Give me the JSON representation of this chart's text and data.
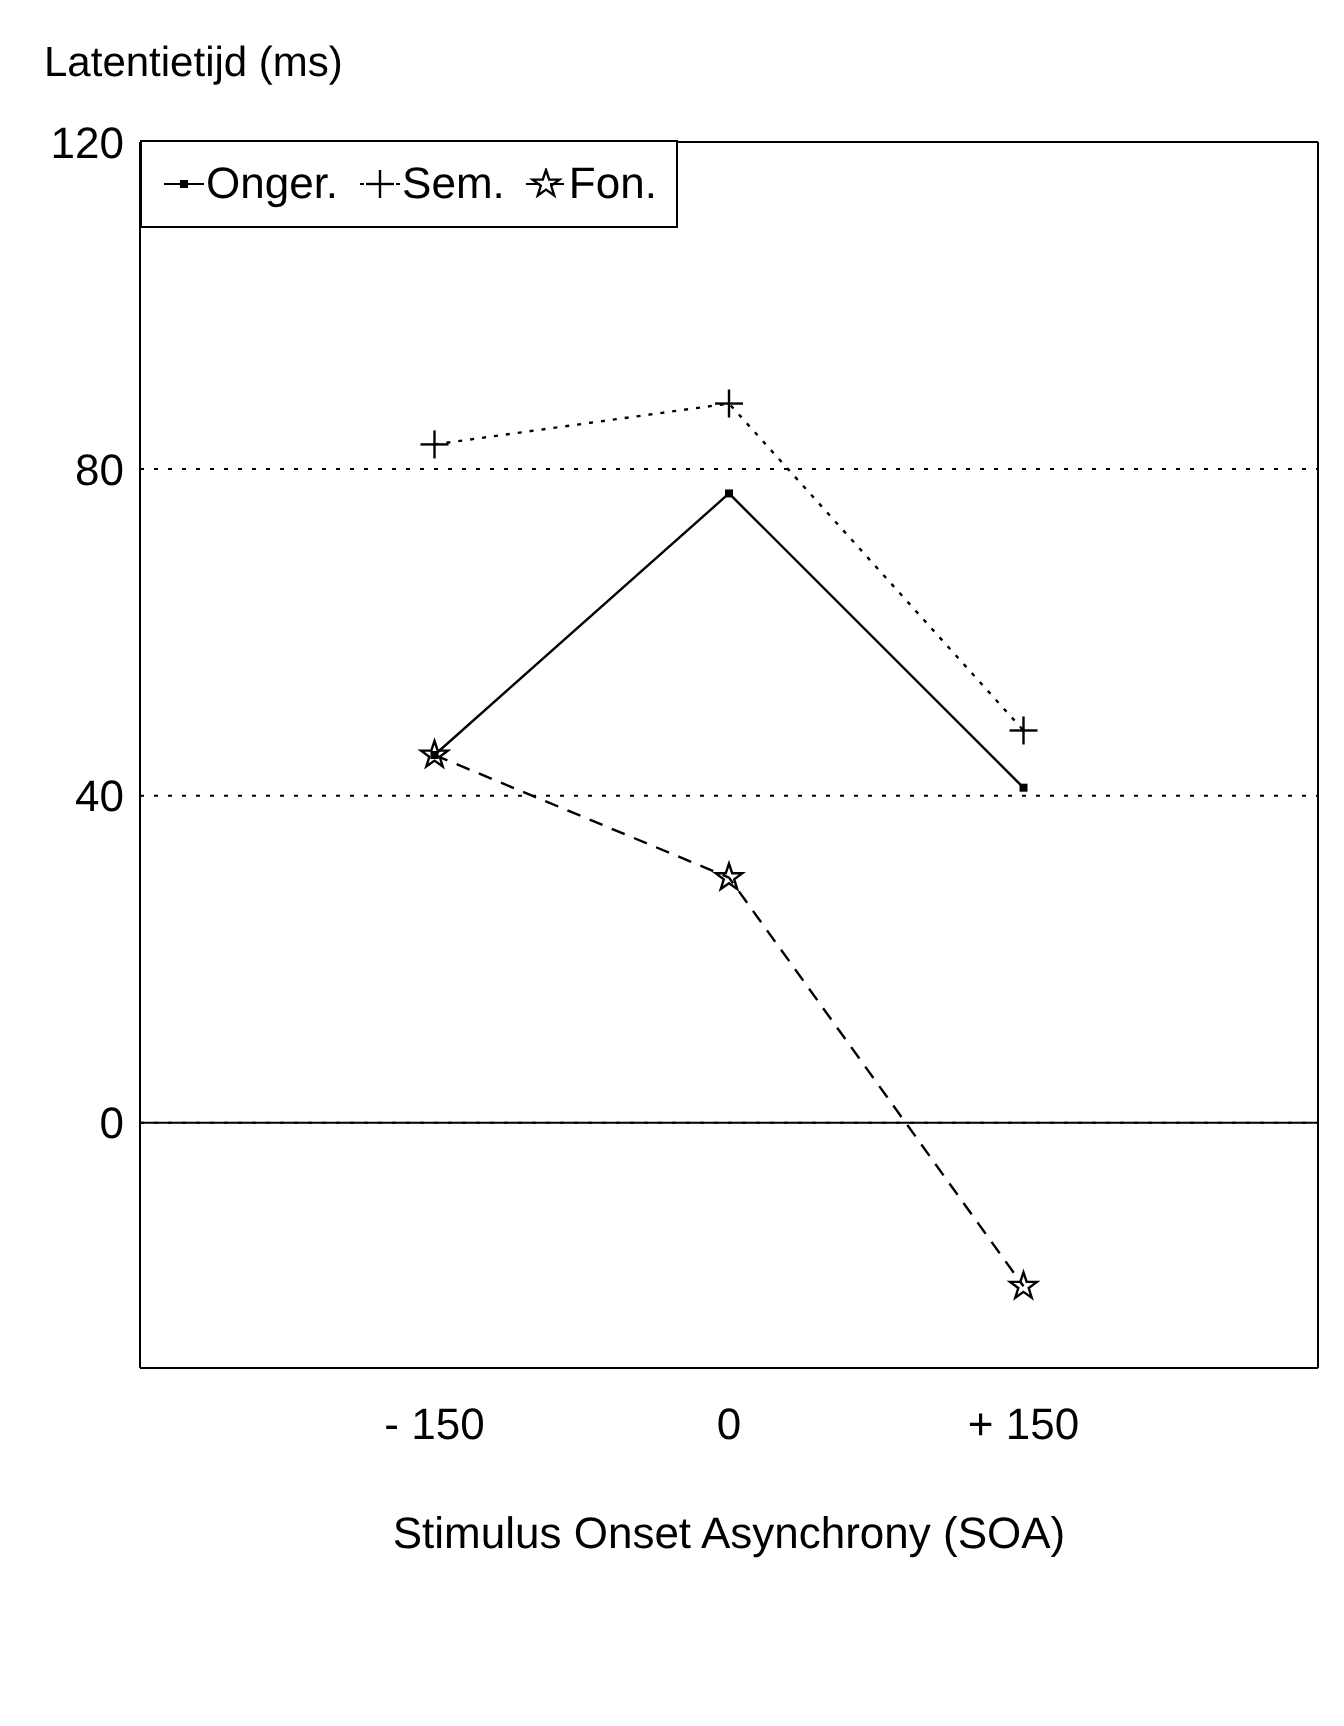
{
  "chart_data": {
    "type": "line",
    "ylabel": "Latentietijd (ms)",
    "xlabel": "Stimulus Onset Asynchrony (SOA)",
    "x": [
      -150,
      0,
      150
    ],
    "xlim": [
      -300,
      300
    ],
    "xticks": [
      {
        "value": -150,
        "label": "- 150"
      },
      0,
      {
        "value": 150,
        "label": "+ 150"
      }
    ],
    "ylim": [
      -30,
      120
    ],
    "yticks": [
      0,
      40,
      80,
      120
    ],
    "grid": "y",
    "legend": "top left",
    "ref_lines": [
      {
        "axis": "y",
        "value": 0,
        "color": "#000000",
        "line_style": "solid"
      }
    ],
    "series": [
      {
        "name": "Onger.",
        "color": "#000000",
        "values": [
          45,
          77,
          41
        ],
        "marker": "square",
        "line_style": "solid"
      },
      {
        "name": "Sem.",
        "color": "#000000",
        "values": [
          83,
          88,
          48
        ],
        "marker": "cross",
        "line_style": "dotted"
      },
      {
        "name": "Fon.",
        "color": "#000000",
        "values": [
          45,
          30,
          -20
        ],
        "marker": "star",
        "line_style": "dashed"
      }
    ]
  }
}
